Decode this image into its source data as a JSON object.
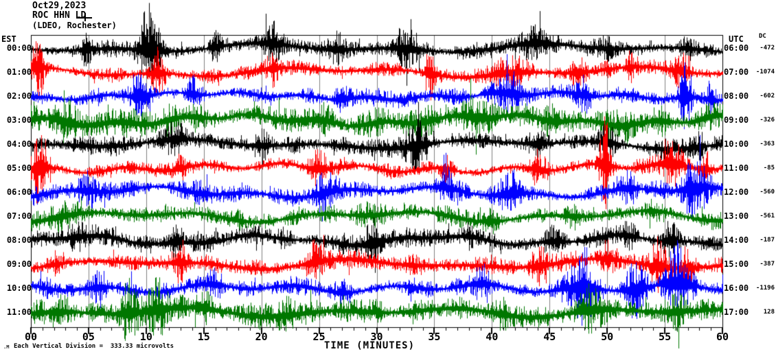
{
  "header": {
    "date": "Oct29,2023",
    "station": "ROC HHN LD",
    "affiliation": "(LDEO, Rochester)"
  },
  "axes": {
    "left_title": "EST",
    "right_title": "UTC",
    "dc_title": "DC",
    "xlabel": "TIME (MINUTES)",
    "x_tick_labels": [
      "00",
      "05",
      "10",
      "15",
      "20",
      "25",
      "30",
      "35",
      "40",
      "45",
      "50",
      "55",
      "60"
    ],
    "scale_note": "Each Vertical Division =  333.33 microvolts",
    "watermark": ".M"
  },
  "colors": {
    "background": "#ffffff",
    "frame": "#000000",
    "grid": "#808080",
    "trace_black": "#000000",
    "trace_red": "#ff0000",
    "trace_blue": "#0000ff",
    "trace_green": "#007700"
  },
  "chart_data": {
    "type": "line",
    "title": "ROC HHN LD (LDEO, Rochester) Oct29,2023",
    "xlabel": "TIME (MINUTES)",
    "x_range": [
      0,
      60
    ],
    "x_major_step": 5,
    "x_minor_step": 1,
    "grid": true,
    "vertical_division_microvolts": 333.33,
    "rows": [
      {
        "est": "00:00",
        "utc": "06:00",
        "dc": "-472",
        "color": "#000000",
        "seed": 1001,
        "base_amp": 9,
        "bursts": [
          [
            4.8,
            0.5,
            28
          ],
          [
            10.3,
            1.2,
            55
          ],
          [
            16,
            0.6,
            22
          ],
          [
            21,
            1,
            20
          ],
          [
            26.5,
            0.8,
            15
          ],
          [
            32.5,
            1.5,
            25
          ],
          [
            43.5,
            1.5,
            18
          ],
          [
            50,
            1,
            15
          ],
          [
            57,
            1,
            12
          ]
        ]
      },
      {
        "est": "01:00",
        "utc": "07:00",
        "dc": "-1074",
        "color": "#ff0000",
        "seed": 1078,
        "base_amp": 8,
        "bursts": [
          [
            0.6,
            0.7,
            45
          ],
          [
            11,
            0.8,
            28
          ],
          [
            21,
            0.7,
            22
          ],
          [
            34.6,
            0.6,
            35
          ],
          [
            41.3,
            2.5,
            18
          ],
          [
            47.5,
            0.8,
            25
          ],
          [
            52,
            0.6,
            18
          ],
          [
            56.5,
            1,
            22
          ]
        ]
      },
      {
        "est": "02:00",
        "utc": "08:00",
        "dc": "-602",
        "color": "#0000ff",
        "seed": 1155,
        "base_amp": 9,
        "bursts": [
          [
            9.5,
            1,
            22
          ],
          [
            14,
            0.8,
            15
          ],
          [
            27,
            0.8,
            18
          ],
          [
            41.5,
            1.5,
            22
          ],
          [
            48,
            1,
            18
          ],
          [
            56.8,
            0.7,
            48
          ],
          [
            59,
            0.5,
            25
          ]
        ]
      },
      {
        "est": "03:00",
        "utc": "09:00",
        "dc": "-326",
        "color": "#007700",
        "seed": 1232,
        "base_amp": 16,
        "bursts": [
          [
            3,
            2,
            18
          ],
          [
            12,
            1,
            15
          ],
          [
            25,
            1.5,
            12
          ],
          [
            38.5,
            1.5,
            15
          ],
          [
            45,
            1,
            12
          ],
          [
            55,
            1,
            10
          ]
        ]
      },
      {
        "est": "04:00",
        "utc": "10:00",
        "dc": "-363",
        "color": "#000000",
        "seed": 1309,
        "base_amp": 10,
        "bursts": [
          [
            12.5,
            0.8,
            20
          ],
          [
            20,
            1,
            12
          ],
          [
            33.5,
            1.2,
            28
          ],
          [
            44,
            1,
            15
          ],
          [
            50,
            1.2,
            20
          ],
          [
            58,
            0.6,
            15
          ]
        ]
      },
      {
        "est": "05:00",
        "utc": "11:00",
        "dc": "-85",
        "color": "#ff0000",
        "seed": 1386,
        "base_amp": 9,
        "bursts": [
          [
            0.8,
            0.8,
            55
          ],
          [
            13,
            0.8,
            15
          ],
          [
            25,
            1,
            22
          ],
          [
            36,
            0.8,
            18
          ],
          [
            44,
            1,
            20
          ],
          [
            49.8,
            0.6,
            60
          ],
          [
            55.5,
            1.2,
            30
          ],
          [
            58.5,
            0.5,
            20
          ]
        ]
      },
      {
        "est": "06:00",
        "utc": "12:00",
        "dc": "-560",
        "color": "#0000ff",
        "seed": 1463,
        "base_amp": 10,
        "bursts": [
          [
            5,
            1,
            15
          ],
          [
            15,
            1,
            12
          ],
          [
            25.5,
            1.2,
            20
          ],
          [
            36,
            1,
            15
          ],
          [
            41.5,
            1.5,
            25
          ],
          [
            52,
            1,
            18
          ],
          [
            57.5,
            1.5,
            35
          ]
        ]
      },
      {
        "est": "07:00",
        "utc": "13:00",
        "dc": "-561",
        "color": "#007700",
        "seed": 1540,
        "base_amp": 10,
        "bursts": [
          [
            2.5,
            1.5,
            15
          ],
          [
            18,
            1,
            10
          ],
          [
            30,
            1.5,
            12
          ],
          [
            40,
            1,
            12
          ],
          [
            47,
            1,
            15
          ],
          [
            54,
            1,
            12
          ]
        ]
      },
      {
        "est": "08:00",
        "utc": "14:00",
        "dc": "-187",
        "color": "#000000",
        "seed": 1617,
        "base_amp": 10,
        "bursts": [
          [
            4,
            1,
            12
          ],
          [
            12.5,
            1,
            20
          ],
          [
            22,
            1,
            12
          ],
          [
            29.7,
            0.8,
            35
          ],
          [
            38,
            1,
            12
          ],
          [
            45,
            1,
            15
          ],
          [
            52,
            1,
            12
          ],
          [
            55.5,
            0.8,
            20
          ]
        ]
      },
      {
        "est": "09:00",
        "utc": "15:00",
        "dc": "-387",
        "color": "#ff0000",
        "seed": 1694,
        "base_amp": 10,
        "bursts": [
          [
            2,
            1,
            12
          ],
          [
            13,
            0.8,
            22
          ],
          [
            24.5,
            1,
            25
          ],
          [
            33,
            1,
            12
          ],
          [
            44,
            1,
            18
          ],
          [
            50,
            1,
            15
          ],
          [
            54.5,
            1,
            40
          ],
          [
            57,
            0.8,
            30
          ]
        ]
      },
      {
        "est": "10:00",
        "utc": "16:00",
        "dc": "-1196",
        "color": "#0000ff",
        "seed": 1771,
        "base_amp": 10,
        "bursts": [
          [
            6,
            1,
            12
          ],
          [
            16,
            1,
            12
          ],
          [
            27,
            1,
            15
          ],
          [
            39,
            1,
            25
          ],
          [
            47.8,
            1.5,
            50
          ],
          [
            52.5,
            1.2,
            40
          ],
          [
            56,
            1.5,
            50
          ]
        ]
      },
      {
        "est": "11:00",
        "utc": "17:00",
        "dc": "128",
        "color": "#007700",
        "seed": 1848,
        "base_amp": 13,
        "bursts": [
          [
            2,
            2,
            12
          ],
          [
            8.5,
            1,
            30
          ],
          [
            11,
            1.2,
            35
          ],
          [
            15,
            1,
            15
          ],
          [
            22,
            1,
            12
          ],
          [
            30,
            1,
            10
          ],
          [
            41,
            1,
            12
          ],
          [
            48.5,
            1.5,
            25
          ],
          [
            56,
            1,
            15
          ]
        ]
      }
    ]
  }
}
